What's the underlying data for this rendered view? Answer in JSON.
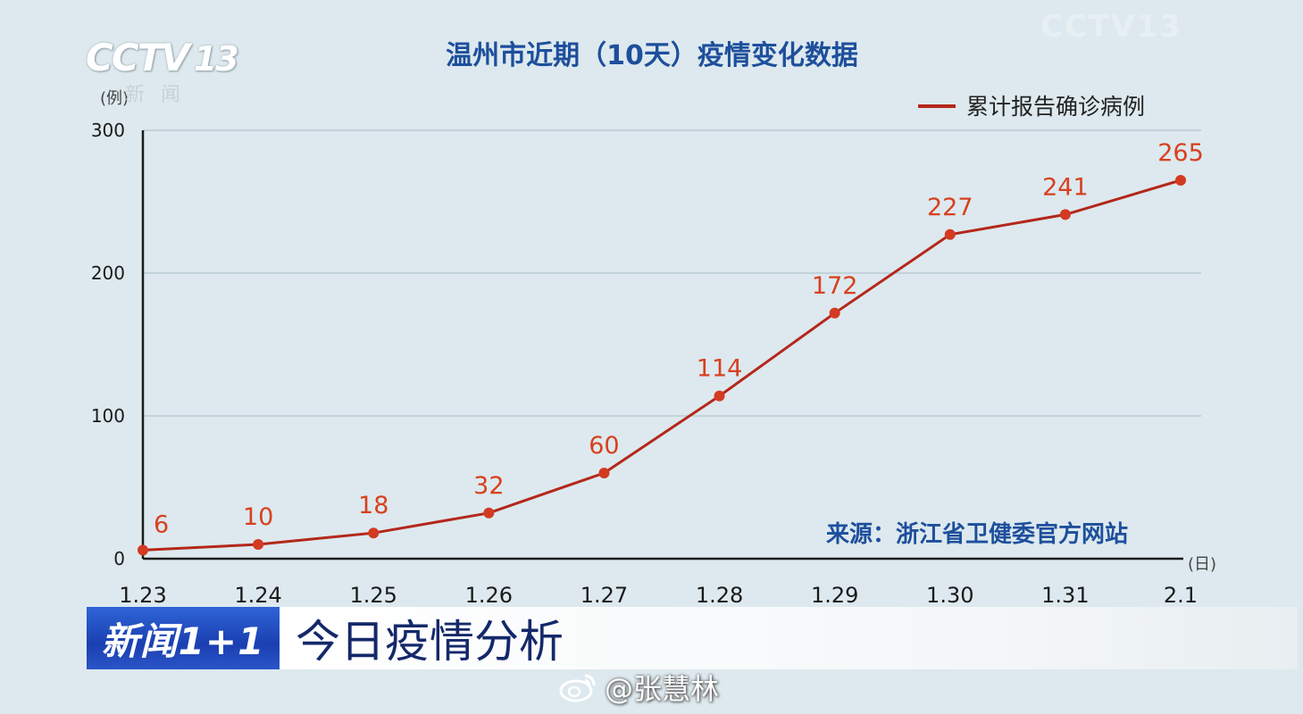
{
  "chart_data": {
    "type": "line",
    "title": "温州市近期（10天）疫情变化数据",
    "ylabel": "(例)",
    "xlabel": "(日)",
    "ylim": [
      0,
      300
    ],
    "yticks": [
      0,
      100,
      200,
      300
    ],
    "grid": true,
    "legend_position": "top-right",
    "categories": [
      "1.23",
      "1.24",
      "1.25",
      "1.26",
      "1.27",
      "1.28",
      "1.29",
      "1.30",
      "1.31",
      "2.1"
    ],
    "series": [
      {
        "name": "累计报告确诊病例",
        "values": [
          6,
          10,
          18,
          32,
          60,
          114,
          172,
          227,
          241,
          265
        ],
        "color": "#b5271b"
      }
    ],
    "source_note": "来源：浙江省卫健委官方网站"
  },
  "watermark": {
    "channel_logo": "CCTV",
    "channel_number": "13",
    "channel_sub": "新闻",
    "top_right": "CCTV13"
  },
  "lower_third": {
    "program": "新闻1+1",
    "topic": "今日疫情分析"
  },
  "credit": {
    "icon": "weibo-icon",
    "handle": "@张慧林"
  },
  "colors": {
    "background": "#dde9ee",
    "line": "#b5271b",
    "label": "#d8401f",
    "title": "#1e4f9c",
    "axis": "#1a1a1a",
    "grid": "#b9cbd4"
  }
}
